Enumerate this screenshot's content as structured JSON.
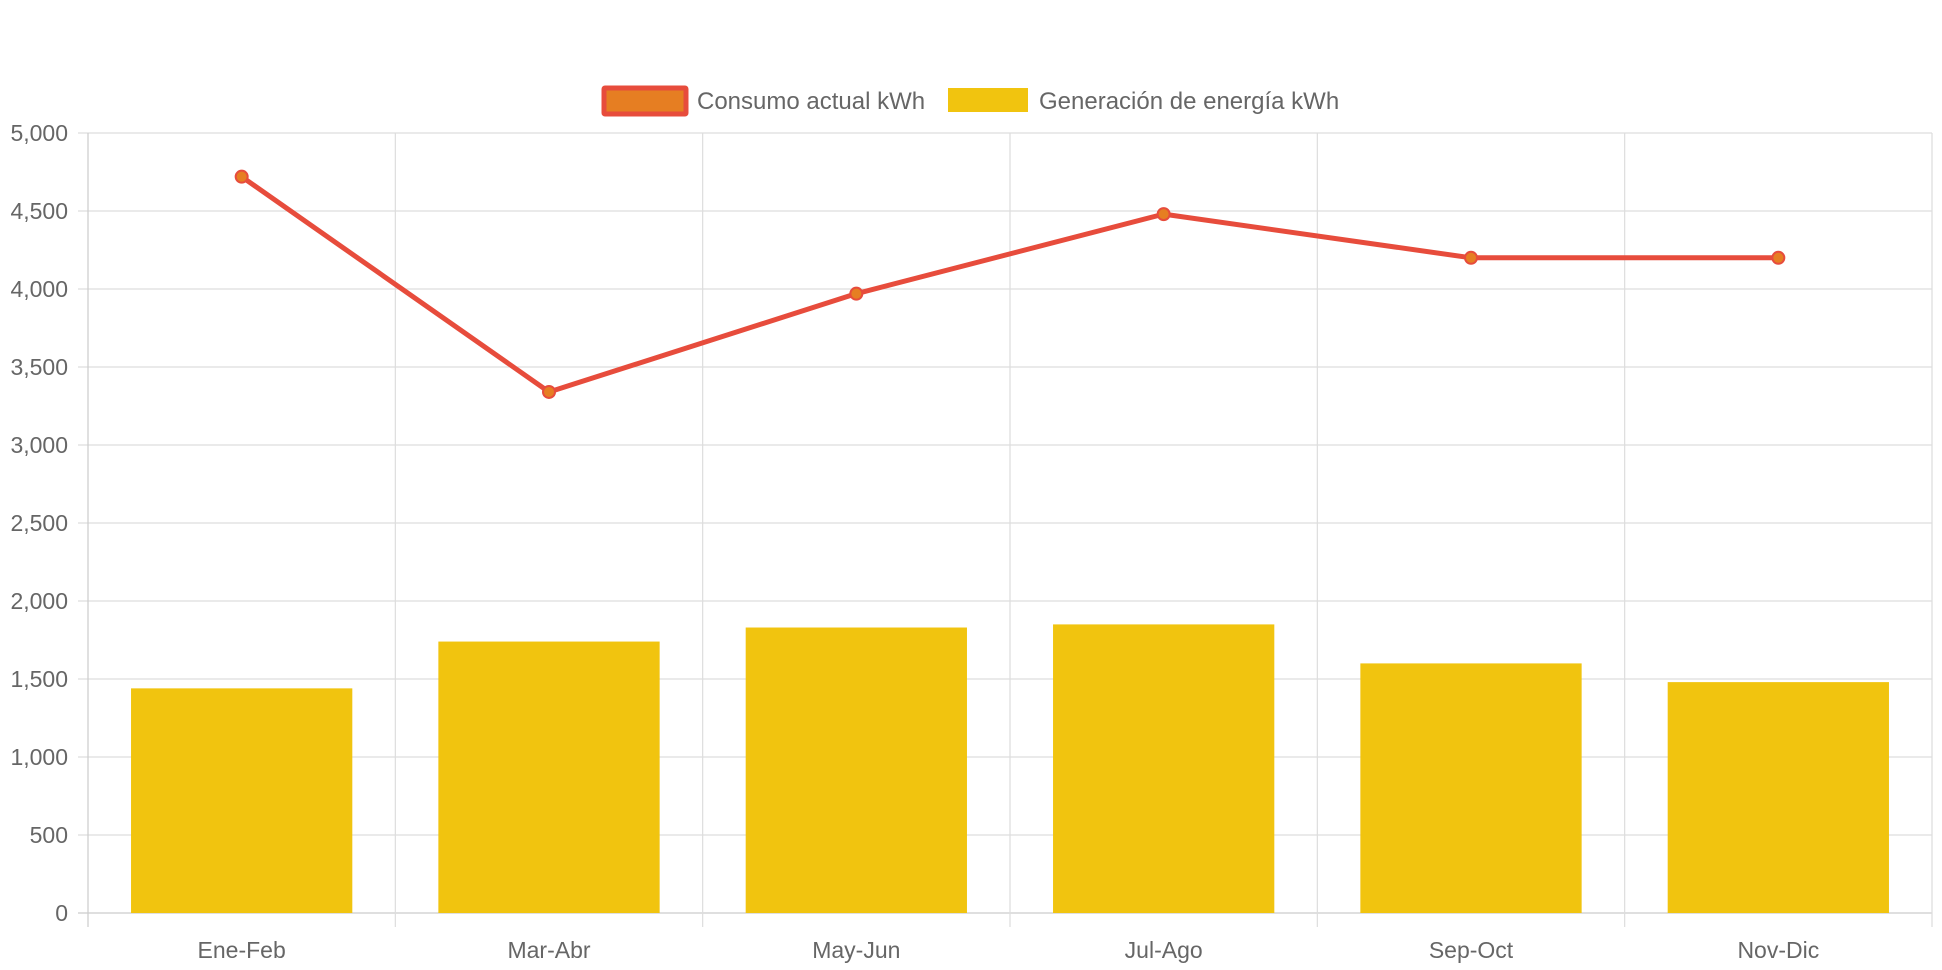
{
  "chart_data": {
    "type": "bar",
    "categories": [
      "Ene-Feb",
      "Mar-Abr",
      "May-Jun",
      "Jul-Ago",
      "Sep-Oct",
      "Nov-Dic"
    ],
    "series": [
      {
        "name": "Consumo actual kWh",
        "type": "line",
        "values": [
          4720,
          3340,
          3970,
          4480,
          4200,
          4200
        ],
        "color": "#e74c3c",
        "point_color": "#e67e22"
      },
      {
        "name": "Generación de energía kWh",
        "type": "bar",
        "values": [
          1440,
          1740,
          1830,
          1850,
          1600,
          1480
        ],
        "color": "#f1c40f"
      }
    ],
    "y_ticks": [
      "0",
      "500",
      "1,000",
      "1,500",
      "2,000",
      "2,500",
      "3,000",
      "3,500",
      "4,000",
      "4,500",
      "5,000"
    ],
    "ylim": [
      0,
      5000
    ],
    "xlabel": "",
    "ylabel": "",
    "grid": true,
    "legend_position": "top-center"
  },
  "colors": {
    "grid": "#dddddd",
    "axis": "#cccccc",
    "text": "#666666",
    "legend_line_fill": "#e67e22",
    "legend_line_border": "#e74c3c"
  }
}
